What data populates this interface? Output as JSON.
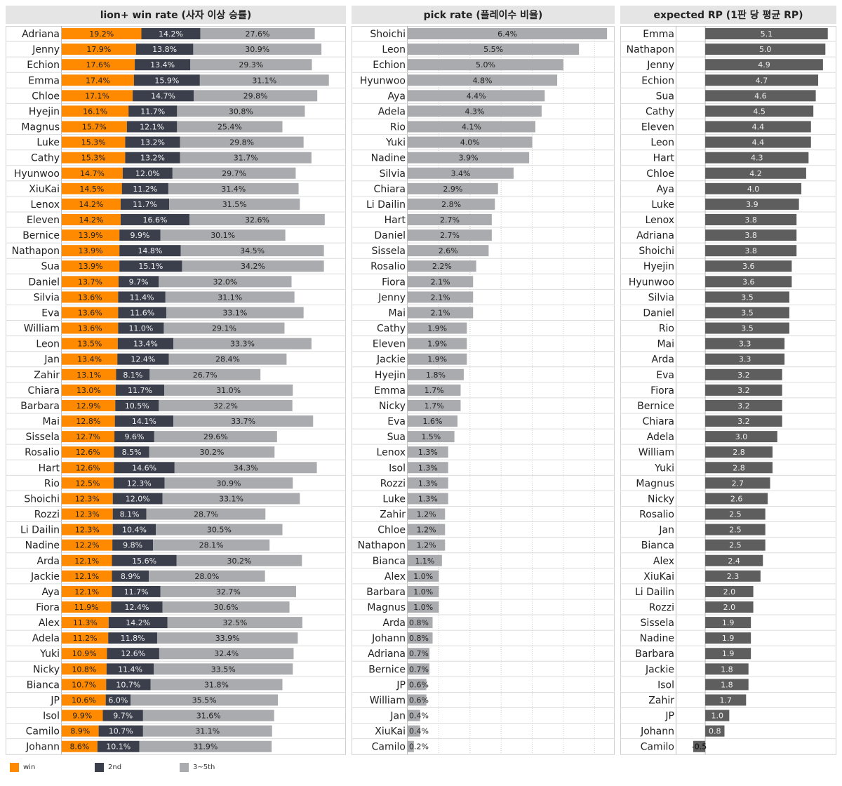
{
  "colors": {
    "win": "#ff8a00",
    "second": "#3b3f4c",
    "rest": "#a9abae",
    "pick": "#a9abae",
    "rp": "#5e5e5e"
  },
  "chart_data": [
    {
      "type": "bar",
      "stacked": true,
      "orientation": "horizontal",
      "title": "lion+ win rate (사자 이상 승률)",
      "categories": [
        "Adriana",
        "Jenny",
        "Echion",
        "Emma",
        "Chloe",
        "Hyejin",
        "Magnus",
        "Luke",
        "Cathy",
        "Hyunwoo",
        "XiuKai",
        "Lenox",
        "Eleven",
        "Bernice",
        "Nathapon",
        "Sua",
        "Daniel",
        "Silvia",
        "Eva",
        "William",
        "Leon",
        "Jan",
        "Zahir",
        "Chiara",
        "Barbara",
        "Mai",
        "Sissela",
        "Rosalio",
        "Hart",
        "Rio",
        "Shoichi",
        "Rozzi",
        "Li Dailin",
        "Nadine",
        "Arda",
        "Jackie",
        "Aya",
        "Fiora",
        "Alex",
        "Adela",
        "Yuki",
        "Nicky",
        "Bianca",
        "JP",
        "Isol",
        "Camilo",
        "Johann"
      ],
      "series": [
        {
          "name": "win",
          "values": [
            19.2,
            17.9,
            17.6,
            17.4,
            17.1,
            16.1,
            15.7,
            15.3,
            15.3,
            14.7,
            14.5,
            14.2,
            14.2,
            13.9,
            13.9,
            13.9,
            13.7,
            13.6,
            13.6,
            13.6,
            13.5,
            13.4,
            13.1,
            13.0,
            12.9,
            12.8,
            12.7,
            12.6,
            12.6,
            12.5,
            12.3,
            12.3,
            12.3,
            12.2,
            12.1,
            12.1,
            12.1,
            11.9,
            11.3,
            11.2,
            10.9,
            10.8,
            10.7,
            10.6,
            9.9,
            8.9,
            8.6
          ]
        },
        {
          "name": "2nd",
          "values": [
            14.2,
            13.8,
            13.4,
            15.9,
            14.7,
            11.7,
            12.1,
            13.2,
            13.2,
            12.0,
            11.2,
            11.7,
            16.6,
            9.9,
            14.8,
            15.1,
            9.7,
            11.4,
            11.6,
            11.0,
            13.4,
            12.4,
            8.1,
            11.7,
            10.5,
            14.1,
            9.6,
            8.5,
            14.6,
            12.3,
            12.0,
            8.1,
            10.4,
            9.8,
            15.6,
            8.9,
            11.7,
            12.4,
            14.2,
            11.8,
            12.6,
            11.4,
            10.7,
            6.0,
            9.7,
            10.7,
            10.1
          ]
        },
        {
          "name": "3~5th",
          "values": [
            27.6,
            30.9,
            29.3,
            31.1,
            29.8,
            30.8,
            25.4,
            29.8,
            31.7,
            29.7,
            31.4,
            31.5,
            32.6,
            30.1,
            34.5,
            34.2,
            32.0,
            31.1,
            33.1,
            29.1,
            33.3,
            28.4,
            26.7,
            31.0,
            32.2,
            33.7,
            29.6,
            30.2,
            34.3,
            30.9,
            33.1,
            28.7,
            30.5,
            28.1,
            30.2,
            28.0,
            32.7,
            30.6,
            32.5,
            33.9,
            32.4,
            33.5,
            31.8,
            35.5,
            31.6,
            31.1,
            31.9
          ]
        }
      ],
      "value_suffix": "%",
      "xlim": [
        0,
        68
      ],
      "legend": "bottom-left"
    },
    {
      "type": "bar",
      "orientation": "horizontal",
      "title": "pick rate (플레이수 비율)",
      "categories": [
        "Shoichi",
        "Leon",
        "Echion",
        "Hyunwoo",
        "Aya",
        "Adela",
        "Rio",
        "Yuki",
        "Nadine",
        "Silvia",
        "Chiara",
        "Li Dailin",
        "Hart",
        "Daniel",
        "Sissela",
        "Rosalio",
        "Fiora",
        "Jenny",
        "Mai",
        "Cathy",
        "Eleven",
        "Jackie",
        "Hyejin",
        "Emma",
        "Nicky",
        "Eva",
        "Sua",
        "Lenox",
        "Isol",
        "Rozzi",
        "Luke",
        "Zahir",
        "Chloe",
        "Nathapon",
        "Bianca",
        "Alex",
        "Barbara",
        "Magnus",
        "Arda",
        "Johann",
        "Adriana",
        "Bernice",
        "JP",
        "William",
        "Jan",
        "XiuKai",
        "Camilo"
      ],
      "values": [
        6.4,
        5.5,
        5.0,
        4.8,
        4.4,
        4.3,
        4.1,
        4.0,
        3.9,
        3.4,
        2.9,
        2.8,
        2.7,
        2.7,
        2.6,
        2.2,
        2.1,
        2.1,
        2.1,
        1.9,
        1.9,
        1.9,
        1.8,
        1.7,
        1.7,
        1.6,
        1.5,
        1.3,
        1.3,
        1.3,
        1.3,
        1.2,
        1.2,
        1.2,
        1.1,
        1.0,
        1.0,
        1.0,
        0.8,
        0.8,
        0.7,
        0.7,
        0.6,
        0.6,
        0.4,
        0.4,
        0.2
      ],
      "value_suffix": "%",
      "xlim": [
        0,
        6.6
      ],
      "grid": true
    },
    {
      "type": "bar",
      "orientation": "horizontal",
      "title": "expected RP (1판 당 평균 RP)",
      "categories": [
        "Emma",
        "Nathapon",
        "Jenny",
        "Echion",
        "Sua",
        "Cathy",
        "Eleven",
        "Leon",
        "Hart",
        "Chloe",
        "Aya",
        "Luke",
        "Lenox",
        "Adriana",
        "Shoichi",
        "Hyejin",
        "Hyunwoo",
        "Silvia",
        "Daniel",
        "Rio",
        "Mai",
        "Arda",
        "Eva",
        "Fiora",
        "Bernice",
        "Chiara",
        "Adela",
        "William",
        "Yuki",
        "Magnus",
        "Nicky",
        "Rosalio",
        "Jan",
        "Bianca",
        "Alex",
        "XiuKai",
        "Li Dailin",
        "Rozzi",
        "Sissela",
        "Nadine",
        "Barbara",
        "Jackie",
        "Isol",
        "Zahir",
        "JP",
        "Johann",
        "Camilo"
      ],
      "values": [
        5.1,
        5.0,
        4.9,
        4.7,
        4.6,
        4.5,
        4.4,
        4.4,
        4.3,
        4.2,
        4.0,
        3.9,
        3.8,
        3.8,
        3.8,
        3.6,
        3.6,
        3.5,
        3.5,
        3.5,
        3.3,
        3.3,
        3.2,
        3.2,
        3.2,
        3.2,
        3.0,
        2.8,
        2.8,
        2.7,
        2.6,
        2.5,
        2.5,
        2.5,
        2.4,
        2.3,
        2.0,
        2.0,
        1.9,
        1.9,
        1.9,
        1.8,
        1.8,
        1.7,
        1.0,
        0.8,
        -0.5
      ],
      "xlim": [
        -1.2,
        5.4
      ]
    }
  ]
}
